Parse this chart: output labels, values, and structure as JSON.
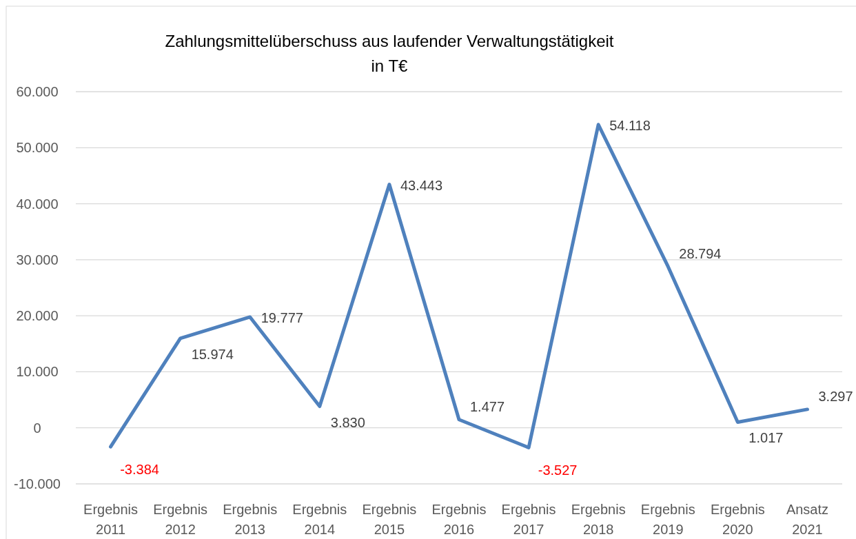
{
  "chart_data": {
    "type": "line",
    "title": "Zahlungsmittelüberschuss aus laufender Verwaltungstätigkeit",
    "subtitle": "in T€",
    "categories": [
      "Ergebnis 2011",
      "Ergebnis 2012",
      "Ergebnis 2013",
      "Ergebnis 2014",
      "Ergebnis 2015",
      "Ergebnis 2016",
      "Ergebnis 2017",
      "Ergebnis 2018",
      "Ergebnis 2019",
      "Ergebnis 2020",
      "Ansatz 2021"
    ],
    "series": [
      {
        "color": "#4f81bd",
        "values": [
          -3384,
          15974,
          19777,
          3830,
          43443,
          1477,
          -3527,
          54118,
          28794,
          1017,
          3297
        ],
        "value_labels": [
          "-3.384",
          "15.974",
          "19.777",
          "3.830",
          "43.443",
          "1.477",
          "-3.527",
          "54.118",
          "28.794",
          "1.017",
          "3.297"
        ]
      }
    ],
    "ylim": [
      -10000,
      60000
    ],
    "yticks": [
      {
        "value": -10000,
        "label": "-10.000"
      },
      {
        "value": 0,
        "label": "0"
      },
      {
        "value": 10000,
        "label": "10.000"
      },
      {
        "value": 20000,
        "label": "20.000"
      },
      {
        "value": 30000,
        "label": "30.000"
      },
      {
        "value": 40000,
        "label": "40.000"
      },
      {
        "value": 50000,
        "label": "50.000"
      },
      {
        "value": 60000,
        "label": "60.000"
      }
    ],
    "grid": "y",
    "marker": "none",
    "line_style": "solid"
  }
}
